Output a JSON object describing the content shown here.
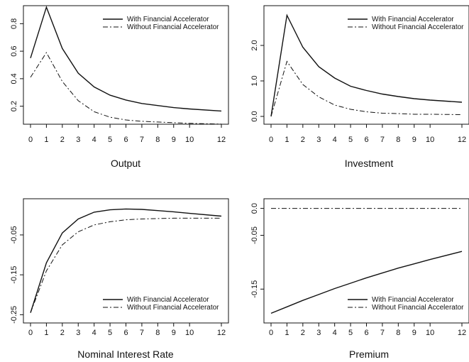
{
  "chart_data": [
    {
      "type": "line",
      "title": "",
      "xlabel": "Output",
      "ylabel": "",
      "x": [
        0,
        1,
        2,
        3,
        4,
        5,
        6,
        7,
        8,
        9,
        10,
        12
      ],
      "xticks": [
        "0",
        "1",
        "2",
        "3",
        "4",
        "5",
        "6",
        "7",
        "8",
        "9",
        "10",
        "12"
      ],
      "ylim": [
        0.1,
        0.9
      ],
      "yticks": [
        0.2,
        0.4,
        0.6,
        0.8
      ],
      "ytick_labels": [
        "0.2",
        "0.4",
        "0.6",
        "0.8"
      ],
      "legend_position": "top-right",
      "series": [
        {
          "name": "With Financial Accelerator",
          "style": "solid",
          "values": [
            0.55,
            0.92,
            0.62,
            0.44,
            0.34,
            0.28,
            0.245,
            0.22,
            0.205,
            0.19,
            0.18,
            0.165
          ]
        },
        {
          "name": "Without Financial Accelerator",
          "style": "dashdot",
          "values": [
            0.41,
            0.59,
            0.38,
            0.24,
            0.16,
            0.12,
            0.1,
            0.09,
            0.085,
            0.08,
            0.075,
            0.07
          ]
        }
      ]
    },
    {
      "type": "line",
      "title": "",
      "xlabel": "Investment",
      "ylabel": "",
      "x": [
        0,
        1,
        2,
        3,
        4,
        5,
        6,
        7,
        8,
        9,
        10,
        12
      ],
      "xticks": [
        "0",
        "1",
        "2",
        "3",
        "4",
        "5",
        "6",
        "7",
        "8",
        "9",
        "10",
        "12"
      ],
      "ylim": [
        -0.1,
        3.0
      ],
      "yticks": [
        0.0,
        1.0,
        2.0
      ],
      "ytick_labels": [
        "0.0",
        "1.0",
        "2.0"
      ],
      "legend_position": "top-right",
      "series": [
        {
          "name": "With Financial Accelerator",
          "style": "solid",
          "values": [
            0.0,
            2.85,
            1.95,
            1.4,
            1.08,
            0.85,
            0.73,
            0.63,
            0.56,
            0.5,
            0.46,
            0.4
          ]
        },
        {
          "name": "Without Financial Accelerator",
          "style": "dashdot",
          "values": [
            0.0,
            1.55,
            0.9,
            0.55,
            0.32,
            0.2,
            0.13,
            0.09,
            0.08,
            0.06,
            0.06,
            0.05
          ]
        }
      ]
    },
    {
      "type": "line",
      "title": "",
      "xlabel": "Nominal Interest Rate",
      "ylabel": "",
      "x": [
        0,
        1,
        2,
        3,
        4,
        5,
        6,
        7,
        8,
        9,
        10,
        12
      ],
      "xticks": [
        "0",
        "1",
        "2",
        "3",
        "4",
        "5",
        "6",
        "7",
        "8",
        "9",
        "10",
        "12"
      ],
      "ylim": [
        -0.26,
        0.03
      ],
      "yticks": [
        -0.25,
        -0.15,
        -0.05
      ],
      "ytick_labels": [
        "-0.25",
        "-0.15",
        "-0.05"
      ],
      "legend_position": "bottom-right",
      "series": [
        {
          "name": "With Financial Accelerator",
          "style": "solid",
          "values": [
            -0.245,
            -0.12,
            -0.045,
            -0.01,
            0.007,
            0.013,
            0.015,
            0.014,
            0.011,
            0.008,
            0.004,
            -0.003
          ]
        },
        {
          "name": "Without Financial Accelerator",
          "style": "dashdot",
          "values": [
            -0.245,
            -0.14,
            -0.075,
            -0.042,
            -0.025,
            -0.017,
            -0.012,
            -0.01,
            -0.009,
            -0.008,
            -0.008,
            -0.008
          ]
        }
      ]
    },
    {
      "type": "line",
      "title": "",
      "xlabel": "Premium",
      "ylabel": "",
      "x": [
        0,
        1,
        2,
        3,
        4,
        5,
        6,
        7,
        8,
        9,
        10,
        12
      ],
      "xticks": [
        "0",
        "1",
        "2",
        "3",
        "4",
        "5",
        "6",
        "7",
        "8",
        "9",
        "10",
        "12"
      ],
      "ylim": [
        -0.205,
        0.01
      ],
      "yticks": [
        0.0,
        -0.05,
        -0.15
      ],
      "ytick_labels": [
        "0.0",
        "-0.05",
        "-0.15"
      ],
      "legend_position": "bottom-right",
      "series": [
        {
          "name": "With Financial Accelerator",
          "style": "solid",
          "values": [
            -0.195,
            -0.183,
            -0.171,
            -0.16,
            -0.149,
            -0.139,
            -0.129,
            -0.12,
            -0.111,
            -0.103,
            -0.095,
            -0.08
          ]
        },
        {
          "name": "Without Financial Accelerator",
          "style": "dashdot",
          "values": [
            0.0,
            0.0,
            0.0,
            0.0,
            0.0,
            0.0,
            0.0,
            0.0,
            0.0,
            0.0,
            0.0,
            0.0
          ]
        }
      ]
    }
  ]
}
